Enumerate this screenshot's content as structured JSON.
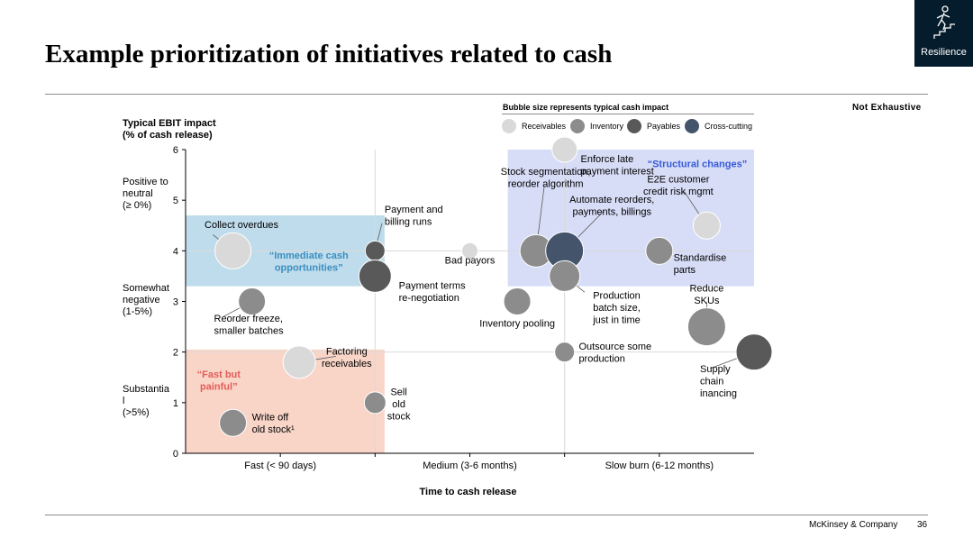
{
  "page": {
    "title": "Example prioritization of initiatives related to cash",
    "badge_label": "Resilience",
    "badge_icon": "person-climbing-stairs-icon",
    "not_exhaustive": "Not Exhaustive",
    "footer_company": "McKinsey & Company",
    "page_number": "36",
    "colors": {
      "navy": "#051c2c",
      "light": "#d9d9d9",
      "medium": "#8c8c8c",
      "dark": "#595959",
      "cross": "#44546a"
    }
  },
  "legend": {
    "title": "Bubble size represents typical cash impact",
    "items": [
      {
        "label": "Receivables",
        "color": "#d9d9d9"
      },
      {
        "label": "Inventory",
        "color": "#8c8c8c"
      },
      {
        "label": "Payables",
        "color": "#595959"
      },
      {
        "label": "Cross-cutting",
        "color": "#44546a"
      }
    ]
  },
  "chart_data": {
    "type": "scatter",
    "ylabel": "Typical EBIT impact\n(% of cash release)",
    "xlabel": "Time to cash release",
    "xlim": [
      0,
      6
    ],
    "ylim": [
      0,
      6
    ],
    "yticks": [
      0,
      1,
      2,
      3,
      4,
      5,
      6
    ],
    "x_categories": [
      {
        "label": "Fast (< 90 days)",
        "x": 1
      },
      {
        "label": "Medium (3-6 months)",
        "x": 3
      },
      {
        "label": "Slow burn (6-12 months)",
        "x": 5
      }
    ],
    "x_dividers": [
      2,
      4
    ],
    "y_dividers": [
      2,
      4
    ],
    "y_categories": [
      {
        "label": "Positive to\nneutral\n(≥ 0%)",
        "y": 5
      },
      {
        "label": "Somewhat\nnegative\n(1-5%)",
        "y": 2.9
      },
      {
        "label": "Substantia\nl\n(>5%)",
        "y": 0.9
      }
    ],
    "zones": [
      {
        "label": "“Immediate cash\nopportunities”",
        "x0": 0,
        "x1": 2.1,
        "y0": 3.3,
        "y1": 4.7,
        "color": "#bfdcec",
        "text_color": "#3a8fc0",
        "lx": 1.3,
        "ly": 3.85
      },
      {
        "label": "“Fast but\npainful”",
        "x0": 0,
        "x1": 2.1,
        "y0": 0,
        "y1": 2.05,
        "color": "#f9d5c8",
        "text_color": "#e25c57",
        "lx": 0.35,
        "ly": 1.5
      },
      {
        "label": "“Structural changes”",
        "x0": 3.4,
        "x1": 6,
        "y0": 3.3,
        "y1": 6,
        "color": "#d7ddf7",
        "text_color": "#3759d6",
        "lx": 5.4,
        "ly": 5.65
      }
    ],
    "points": [
      {
        "name": "Collect overdues",
        "category": "Receivables",
        "x": 0.5,
        "y": 4.0,
        "size": 20,
        "lx": 0.2,
        "ly": 4.45,
        "la": "start"
      },
      {
        "name": "Reorder freeze,\nsmaller batches",
        "category": "Inventory",
        "x": 0.7,
        "y": 3.0,
        "size": 15,
        "lx": 0.3,
        "ly": 2.6,
        "la": "start"
      },
      {
        "name": "Factoring\nreceivables",
        "category": "Receivables",
        "x": 1.2,
        "y": 1.8,
        "size": 18,
        "lx": 1.7,
        "ly": 1.95,
        "la": "middle"
      },
      {
        "name": "Write off\nold stock¹",
        "category": "Inventory",
        "x": 0.5,
        "y": 0.6,
        "size": 15,
        "lx": 0.7,
        "ly": 0.65,
        "la": "start"
      },
      {
        "name": "Payment and\nbilling runs",
        "category": "Payables",
        "x": 2.0,
        "y": 4.0,
        "size": 11,
        "lx": 2.1,
        "ly": 4.75,
        "la": "start"
      },
      {
        "name": "Payment terms\nre-negotiation",
        "category": "Payables",
        "x": 2.0,
        "y": 3.5,
        "size": 18,
        "lx": 2.25,
        "ly": 3.25,
        "la": "start"
      },
      {
        "name": "Sell\nold\nstock",
        "category": "Inventory",
        "x": 2.0,
        "y": 1.0,
        "size": 12,
        "lx": 2.25,
        "ly": 1.15,
        "la": "middle"
      },
      {
        "name": "Bad payors",
        "category": "Receivables",
        "x": 3.0,
        "y": 4.0,
        "size": 9,
        "lx": 3.0,
        "ly": 3.75,
        "la": "middle"
      },
      {
        "name": "Inventory pooling",
        "category": "Inventory",
        "x": 3.5,
        "y": 3.0,
        "size": 15,
        "lx": 3.5,
        "ly": 2.5,
        "la": "middle"
      },
      {
        "name": "Stock segmentation,\nreorder algorithm",
        "category": "Inventory",
        "x": 3.7,
        "y": 4.0,
        "size": 18,
        "lx": 3.8,
        "ly": 5.5,
        "la": "middle"
      },
      {
        "name": "Automate reorders,\npayments, billings",
        "category": "Cross-cutting",
        "x": 4.0,
        "y": 4.0,
        "size": 21,
        "lx": 4.5,
        "ly": 4.95,
        "la": "middle"
      },
      {
        "name": "Enforce late\npayment interest",
        "category": "Receivables",
        "x": 4.0,
        "y": 6.0,
        "size": 14,
        "lx": 4.17,
        "ly": 5.75,
        "la": "start"
      },
      {
        "name": "Production\nbatch size,\njust in time",
        "category": "Inventory",
        "x": 4.0,
        "y": 3.5,
        "size": 17,
        "lx": 4.3,
        "ly": 3.05,
        "la": "start"
      },
      {
        "name": "Outsource some\nproduction",
        "category": "Inventory",
        "x": 4.0,
        "y": 2.0,
        "size": 11,
        "lx": 4.15,
        "ly": 2.05,
        "la": "start"
      },
      {
        "name": "Standardise\nparts",
        "category": "Inventory",
        "x": 5.0,
        "y": 4.0,
        "size": 15,
        "lx": 5.15,
        "ly": 3.8,
        "la": "start"
      },
      {
        "name": "E2E customer\ncredit risk mgmt",
        "category": "Receivables",
        "x": 5.5,
        "y": 4.5,
        "size": 15,
        "lx": 5.2,
        "ly": 5.35,
        "la": "middle"
      },
      {
        "name": "Reduce\nSKUs",
        "category": "Inventory",
        "x": 5.5,
        "y": 2.5,
        "size": 21,
        "lx": 5.5,
        "ly": 3.2,
        "la": "middle"
      },
      {
        "name": "Supply\nchain\ninancing",
        "category": "Payables",
        "x": 6.0,
        "y": 2.0,
        "size": 20,
        "lx": 5.43,
        "ly": 1.6,
        "la": "start"
      }
    ]
  }
}
